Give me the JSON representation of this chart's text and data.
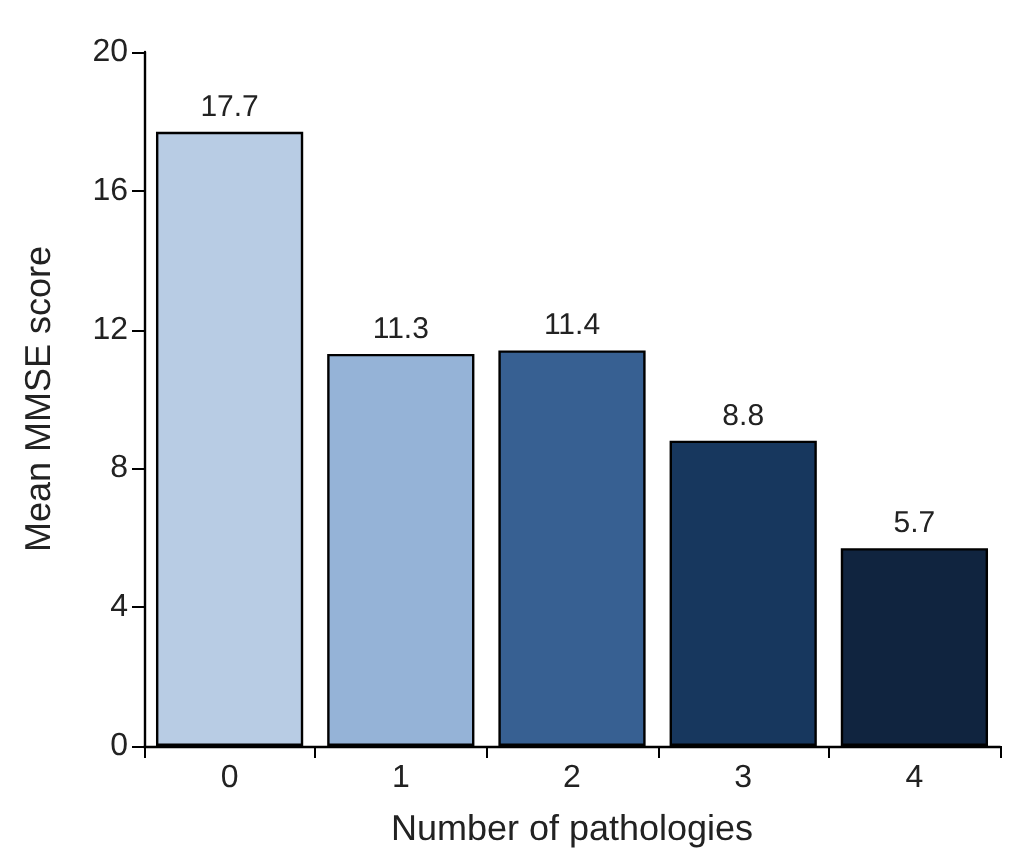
{
  "chart_data": {
    "type": "bar",
    "xlabel": "Number of pathologies",
    "ylabel": "Mean MMSE score",
    "categories": [
      "0",
      "1",
      "2",
      "3",
      "4"
    ],
    "values": [
      17.7,
      11.3,
      11.4,
      8.8,
      5.7
    ],
    "colors": [
      "#b8cce4",
      "#95b3d7",
      "#376092",
      "#17375e",
      "#10243f"
    ],
    "ylim": [
      0,
      20
    ],
    "yticks": [
      0,
      4,
      8,
      12,
      16,
      20
    ],
    "data_labels": true,
    "grid": false
  }
}
